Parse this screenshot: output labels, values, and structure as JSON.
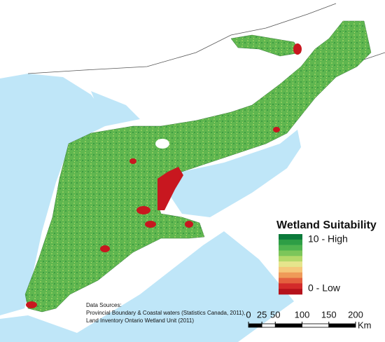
{
  "legend": {
    "title": "Wetland Suitability",
    "high_label": "10 - High",
    "low_label": "0 - Low",
    "colors": [
      "#0b7a3a",
      "#2e9e45",
      "#4fb44f",
      "#7cc65a",
      "#b4d96a",
      "#e6e58c",
      "#f5c77a",
      "#ef9a58",
      "#e4603e",
      "#d32a2a",
      "#b5121b"
    ]
  },
  "sources": {
    "heading": "Data Sources:",
    "lines": [
      "Provincial Boundary & Coastal waters (Statistics Canada, 2011),",
      "Land Inventory Ontario Wetland Unit (2011)"
    ]
  },
  "scale": {
    "ticks": [
      0,
      25,
      50,
      100,
      150,
      200
    ],
    "unit": "Km"
  }
}
